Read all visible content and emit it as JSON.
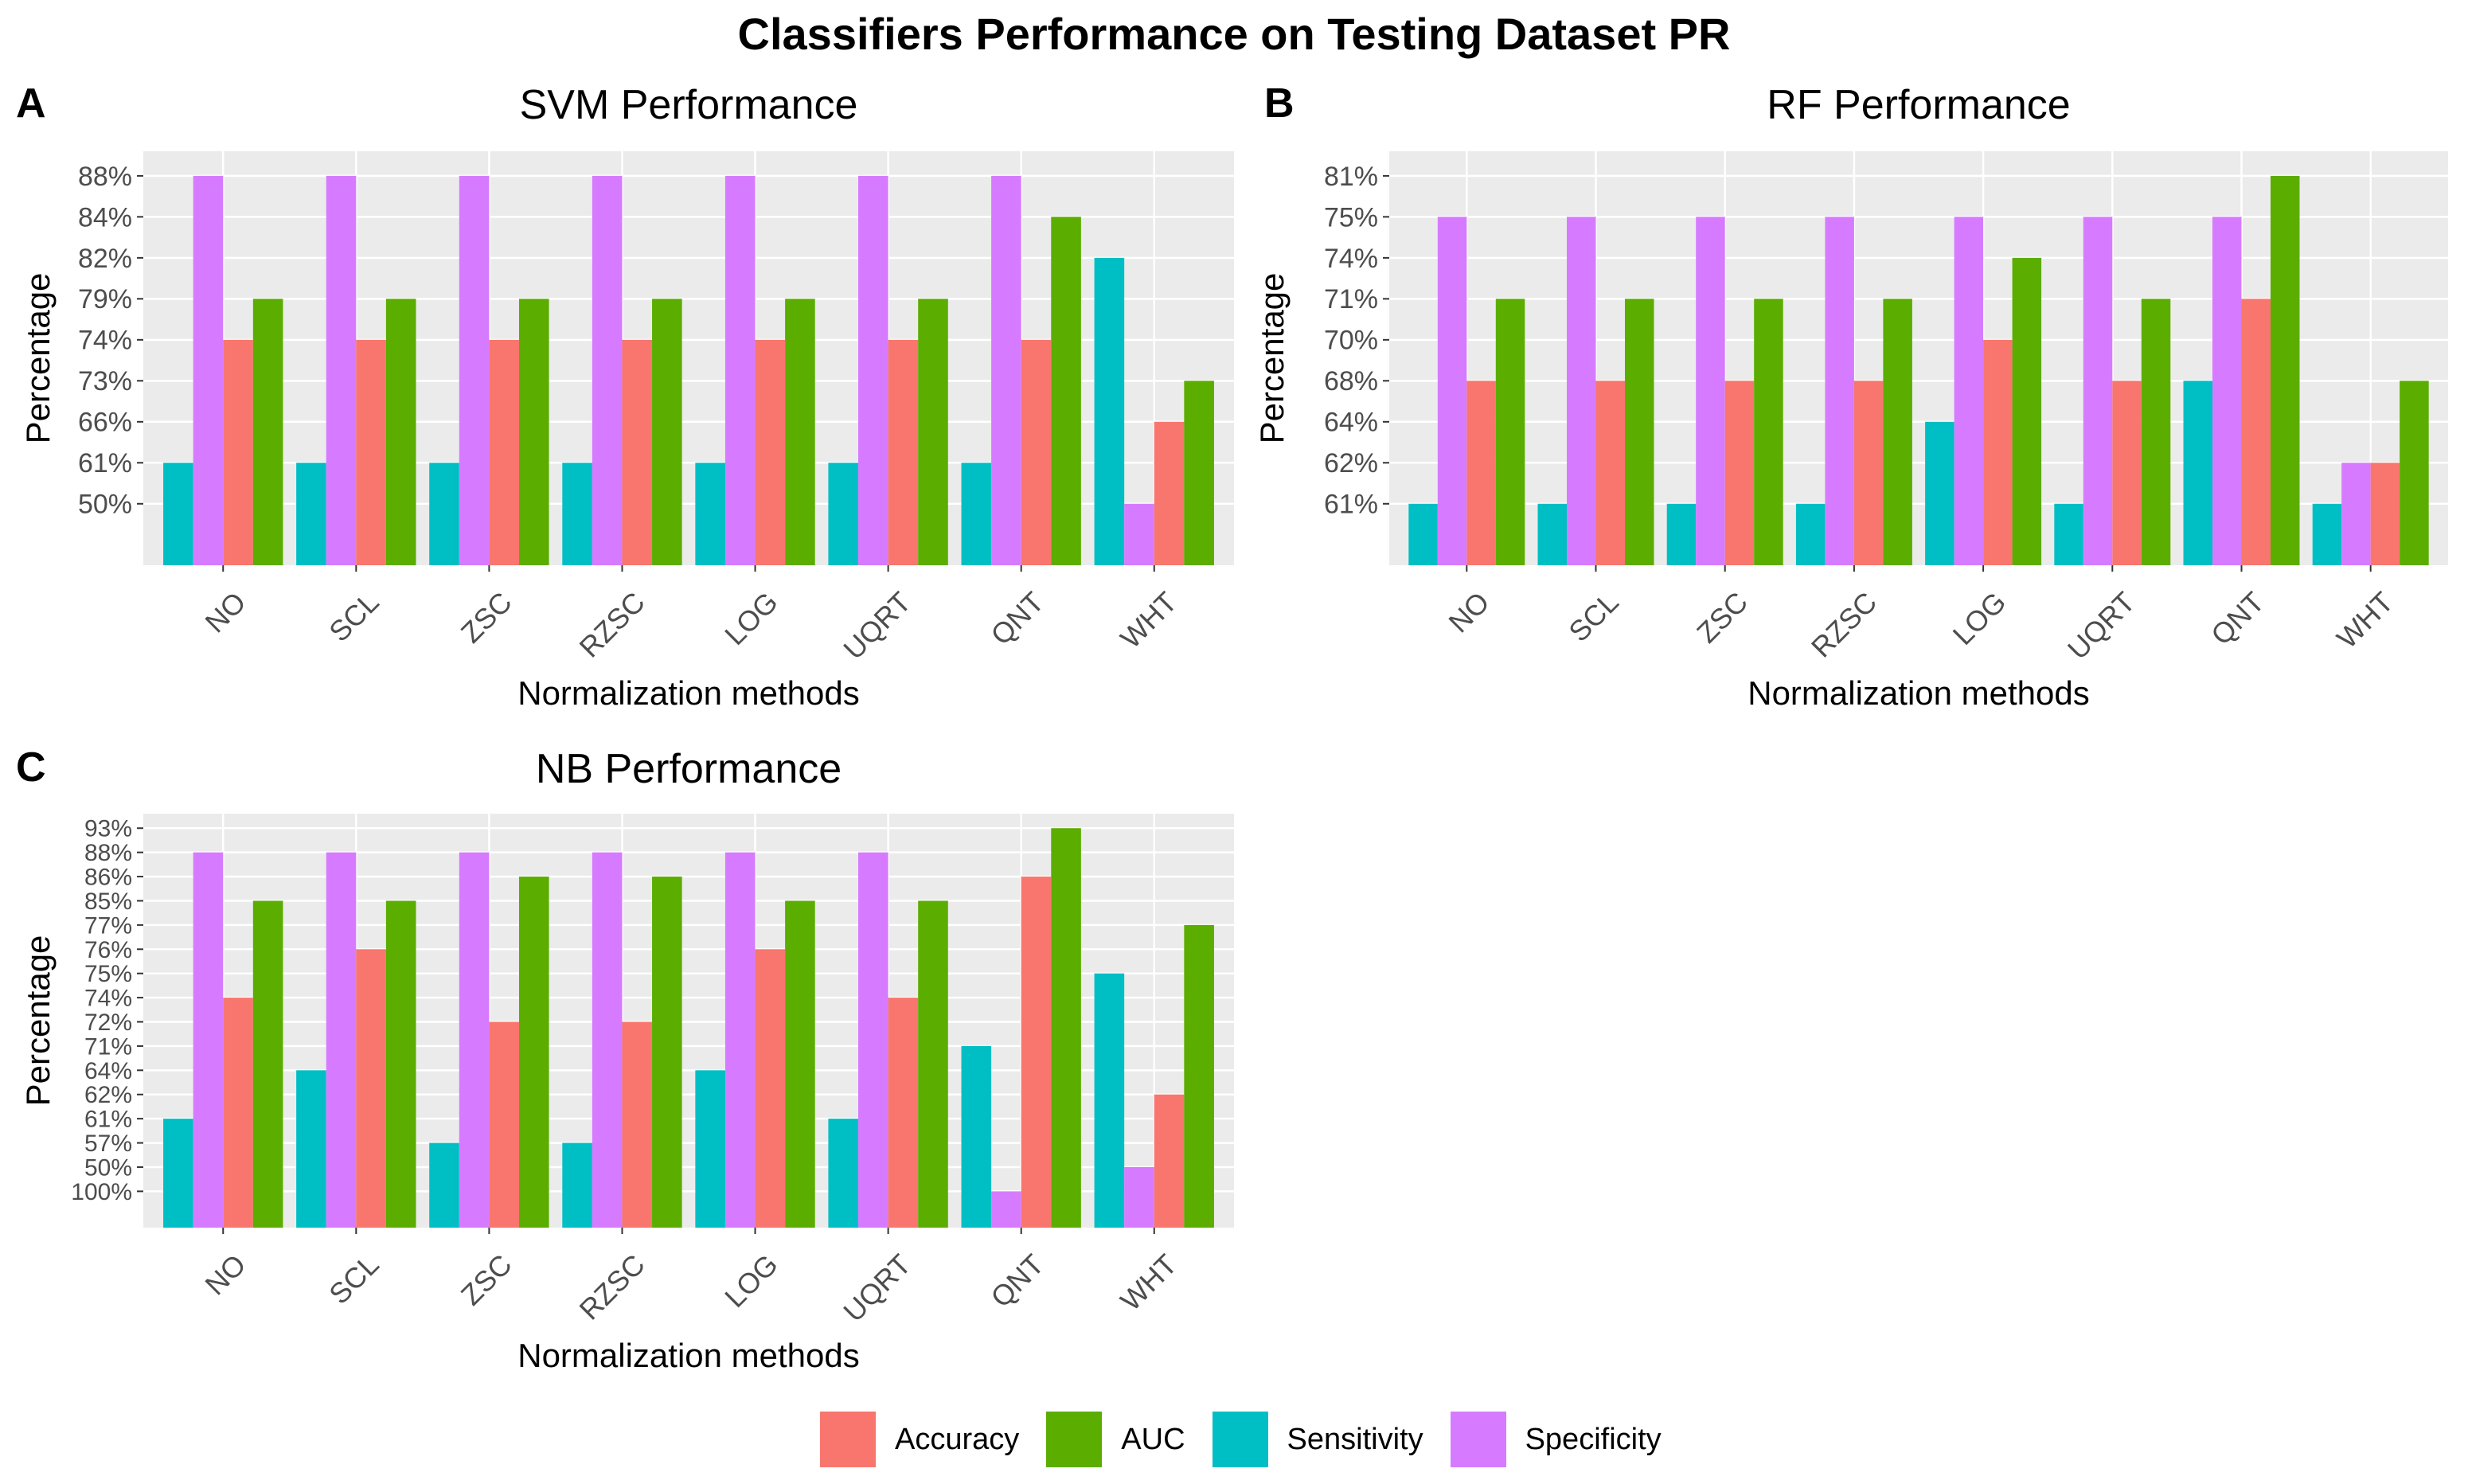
{
  "title": "Classifiers Performance on Testing Dataset PR",
  "legend": [
    {
      "name": "Accuracy",
      "color": "#F8766D"
    },
    {
      "name": "AUC",
      "color": "#5BAD00"
    },
    {
      "name": "Sensitivity",
      "color": "#00BFC4"
    },
    {
      "name": "Specificity",
      "color": "#D67BFF"
    }
  ],
  "panels": [
    {
      "letter": "A",
      "title": "SVM Performance"
    },
    {
      "letter": "B",
      "title": "RF Performance"
    },
    {
      "letter": "C",
      "title": "NB Performance"
    }
  ],
  "chart_data": [
    {
      "type": "bar",
      "title": "SVM Performance",
      "xlabel": "Normalization methods",
      "ylabel": "Percentage",
      "categories": [
        "NO",
        "SCL",
        "ZSC",
        "RZSC",
        "LOG",
        "UQRT",
        "QNT",
        "WHT"
      ],
      "y_ticks": [
        "50%",
        "61%",
        "66%",
        "73%",
        "74%",
        "79%",
        "82%",
        "84%",
        "88%"
      ],
      "series": [
        {
          "name": "Sensitivity",
          "values": [
            "61%",
            "61%",
            "61%",
            "61%",
            "61%",
            "61%",
            "61%",
            "82%"
          ]
        },
        {
          "name": "Specificity",
          "values": [
            "88%",
            "88%",
            "88%",
            "88%",
            "88%",
            "88%",
            "88%",
            "50%"
          ]
        },
        {
          "name": "Accuracy",
          "values": [
            "74%",
            "74%",
            "74%",
            "74%",
            "74%",
            "74%",
            "74%",
            "66%"
          ]
        },
        {
          "name": "AUC",
          "values": [
            "79%",
            "79%",
            "79%",
            "79%",
            "79%",
            "79%",
            "84%",
            "73%"
          ]
        }
      ]
    },
    {
      "type": "bar",
      "title": "RF Performance",
      "xlabel": "Normalization methods",
      "ylabel": "Percentage",
      "categories": [
        "NO",
        "SCL",
        "ZSC",
        "RZSC",
        "LOG",
        "UQRT",
        "QNT",
        "WHT"
      ],
      "y_ticks": [
        "61%",
        "62%",
        "64%",
        "68%",
        "70%",
        "71%",
        "74%",
        "75%",
        "81%"
      ],
      "series": [
        {
          "name": "Sensitivity",
          "values": [
            "61%",
            "61%",
            "61%",
            "61%",
            "64%",
            "61%",
            "68%",
            "61%"
          ]
        },
        {
          "name": "Specificity",
          "values": [
            "75%",
            "75%",
            "75%",
            "75%",
            "75%",
            "75%",
            "75%",
            "62%"
          ]
        },
        {
          "name": "Accuracy",
          "values": [
            "68%",
            "68%",
            "68%",
            "68%",
            "70%",
            "68%",
            "71%",
            "62%"
          ]
        },
        {
          "name": "AUC",
          "values": [
            "71%",
            "71%",
            "71%",
            "71%",
            "74%",
            "71%",
            "81%",
            "68%"
          ]
        }
      ]
    },
    {
      "type": "bar",
      "title": "NB Performance",
      "xlabel": "Normalization methods",
      "ylabel": "Percentage",
      "categories": [
        "NO",
        "SCL",
        "ZSC",
        "RZSC",
        "LOG",
        "UQRT",
        "QNT",
        "WHT"
      ],
      "y_ticks": [
        "100%",
        "50%",
        "57%",
        "61%",
        "62%",
        "64%",
        "71%",
        "72%",
        "74%",
        "75%",
        "76%",
        "77%",
        "85%",
        "86%",
        "88%",
        "93%"
      ],
      "series": [
        {
          "name": "Sensitivity",
          "values": [
            "61%",
            "64%",
            "57%",
            "57%",
            "64%",
            "61%",
            "71%",
            "75%"
          ]
        },
        {
          "name": "Specificity",
          "values": [
            "88%",
            "88%",
            "88%",
            "88%",
            "88%",
            "88%",
            "100%",
            "50%"
          ]
        },
        {
          "name": "Accuracy",
          "values": [
            "74%",
            "76%",
            "72%",
            "72%",
            "76%",
            "74%",
            "86%",
            "62%"
          ]
        },
        {
          "name": "AUC",
          "values": [
            "85%",
            "85%",
            "86%",
            "86%",
            "85%",
            "85%",
            "93%",
            "77%"
          ]
        }
      ]
    }
  ]
}
